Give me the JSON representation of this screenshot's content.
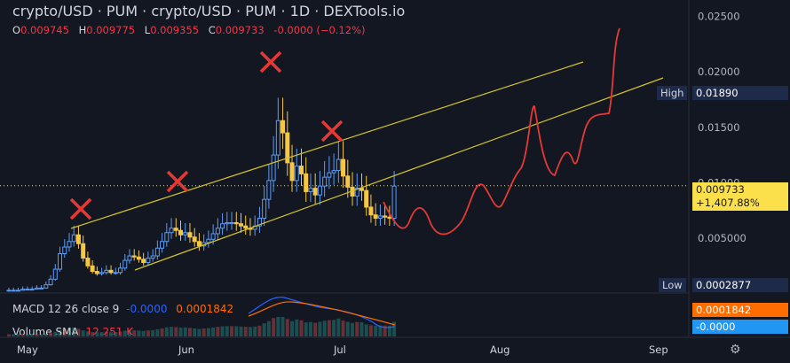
{
  "header": {
    "title": "crypto/USD · PUM · crypto/USD · PUM · 1D · DEXTools.io",
    "ohlc": {
      "o_label": "O",
      "o": "0.009745",
      "h_label": "H",
      "h": "0.009775",
      "l_label": "L",
      "l": "0.009355",
      "c_label": "C",
      "c": "0.009733",
      "change": "-0.0000 (−0.12%)"
    }
  },
  "indicators": {
    "macd_label": "MACD 12 26 close 9",
    "macd_value": "-0.0000",
    "signal_value": "0.0001842",
    "volume_label": "Volume SMA",
    "volume_value": "12.251 K"
  },
  "price_tags": {
    "high_label": "High",
    "high_value": "0.01890",
    "low_label": "Low",
    "low_value": "0.0002877",
    "last_price": "0.009733",
    "last_change": "+1,407.88%",
    "macd_signal_tag": "0.0001842",
    "macd_tag": "-0.0000"
  },
  "colors": {
    "background": "#131722",
    "up": "#5b9cf6",
    "down": "#f7c744",
    "projection": "#e53935",
    "channel": "#d4c22a",
    "macd": "#2962ff",
    "signal": "#ff6d00"
  },
  "chart_data": {
    "type": "candlestick",
    "title": "crypto/USD · PUM · crypto/USD · PUM · 1D · DEXTools.io",
    "y_axis_ticks": [
      0.005,
      0.01,
      0.015,
      0.02,
      0.025
    ],
    "y_tick_labels": [
      "0.005000",
      "0.01000",
      "0.01500",
      "0.02000",
      "0.02500"
    ],
    "x_tick_labels": [
      "May",
      "Jun",
      "Jul",
      "Aug",
      "Sep"
    ],
    "candles_close": [
      0.0003,
      0.0003,
      0.0003,
      0.0004,
      0.0004,
      0.0004,
      0.0005,
      0.0005,
      0.0008,
      0.0013,
      0.0022,
      0.0036,
      0.0042,
      0.0047,
      0.0053,
      0.0045,
      0.0032,
      0.0025,
      0.002,
      0.0018,
      0.0019,
      0.0021,
      0.0019,
      0.0019,
      0.0023,
      0.003,
      0.0034,
      0.0033,
      0.0031,
      0.0028,
      0.0032,
      0.0034,
      0.0041,
      0.0047,
      0.0055,
      0.0059,
      0.0057,
      0.0053,
      0.0055,
      0.0051,
      0.0047,
      0.0043,
      0.0046,
      0.0049,
      0.0054,
      0.0059,
      0.0063,
      0.0064,
      0.0064,
      0.0063,
      0.0061,
      0.0059,
      0.0058,
      0.0061,
      0.0068,
      0.0085,
      0.0102,
      0.0125,
      0.0156,
      0.0145,
      0.0118,
      0.0102,
      0.0115,
      0.0108,
      0.0092,
      0.0095,
      0.0089,
      0.0097,
      0.0105,
      0.0109,
      0.0111,
      0.0121,
      0.0106,
      0.0096,
      0.0088,
      0.0095,
      0.0093,
      0.0078,
      0.0071,
      0.0068,
      0.007,
      0.0069,
      0.0068,
      0.0097
    ],
    "high": 0.0189,
    "low": 0.0002877,
    "last_close": 0.009733,
    "markers": [
      "X",
      "X",
      "X",
      "X"
    ],
    "projection_end": 0.025,
    "legend": "none",
    "grid": false
  }
}
